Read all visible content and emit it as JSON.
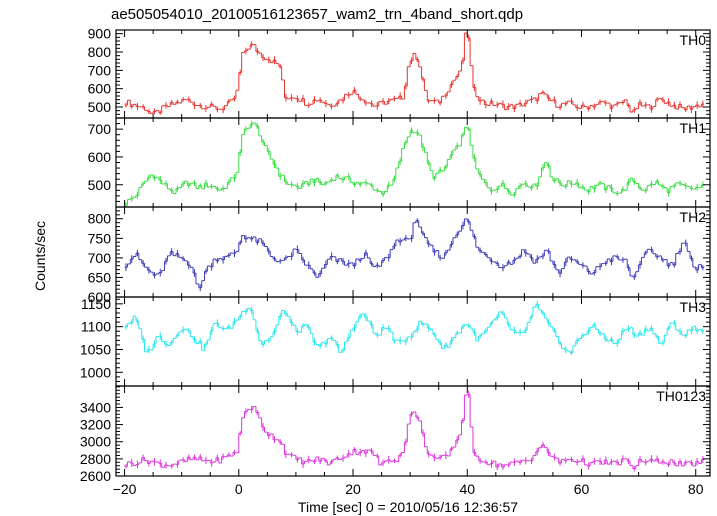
{
  "chart_data": {
    "type": "line",
    "title": "ae505054010_20100516123657_wam2_trn_4band_short.qdp",
    "xlabel": "Time [sec] 0 = 2010/05/16 12:36:57",
    "ylabel": "Counts/sec",
    "xlim": [
      -21.5,
      82.5
    ],
    "xticks": [
      -20,
      0,
      20,
      40,
      60,
      80
    ],
    "panels": [
      {
        "name": "TH0",
        "color": "#e8332f",
        "ylim": [
          440,
          920
        ],
        "yticks": [
          500,
          600,
          700,
          800,
          900
        ],
        "anchors": [
          [
            -20,
            530
          ],
          [
            -18,
            510
          ],
          [
            -16,
            490
          ],
          [
            -15,
            455
          ],
          [
            -13,
            495
          ],
          [
            -11,
            520
          ],
          [
            -9,
            540
          ],
          [
            -7,
            510
          ],
          [
            -5,
            500
          ],
          [
            -3,
            490
          ],
          [
            -1,
            530
          ],
          [
            0,
            600
          ],
          [
            0.5,
            770
          ],
          [
            1.5,
            820
          ],
          [
            2.5,
            840
          ],
          [
            3.5,
            800
          ],
          [
            4.5,
            775
          ],
          [
            5.5,
            760
          ],
          [
            6.5,
            740
          ],
          [
            7.5,
            720
          ],
          [
            8,
            550
          ],
          [
            10,
            560
          ],
          [
            12,
            520
          ],
          [
            14,
            545
          ],
          [
            16,
            510
          ],
          [
            18,
            540
          ],
          [
            19,
            570
          ],
          [
            20,
            590
          ],
          [
            22,
            540
          ],
          [
            24,
            505
          ],
          [
            26,
            530
          ],
          [
            28,
            540
          ],
          [
            29,
            560
          ],
          [
            29.5,
            700
          ],
          [
            30.5,
            780
          ],
          [
            31.5,
            770
          ],
          [
            32,
            690
          ],
          [
            33,
            540
          ],
          [
            35,
            520
          ],
          [
            37,
            610
          ],
          [
            38,
            660
          ],
          [
            39,
            690
          ],
          [
            39.8,
            900
          ],
          [
            40.4,
            880
          ],
          [
            41,
            600
          ],
          [
            43,
            520
          ],
          [
            45,
            515
          ],
          [
            47,
            500
          ],
          [
            49,
            505
          ],
          [
            50,
            520
          ],
          [
            52,
            540
          ],
          [
            53,
            575
          ],
          [
            54,
            550
          ],
          [
            56,
            510
          ],
          [
            58,
            520
          ],
          [
            60,
            495
          ],
          [
            62,
            510
          ],
          [
            64,
            525
          ],
          [
            66,
            500
          ],
          [
            68,
            540
          ],
          [
            69,
            455
          ],
          [
            70,
            510
          ],
          [
            72,
            500
          ],
          [
            74,
            545
          ],
          [
            76,
            510
          ],
          [
            78,
            490
          ],
          [
            80,
            505
          ],
          [
            81,
            515
          ]
        ]
      },
      {
        "name": "TH1",
        "color": "#35dd3e",
        "ylim": [
          420,
          740
        ],
        "yticks": [
          500,
          600,
          700
        ],
        "anchors": [
          [
            -20,
            430
          ],
          [
            -18,
            460
          ],
          [
            -16,
            520
          ],
          [
            -15,
            540
          ],
          [
            -13,
            500
          ],
          [
            -11,
            470
          ],
          [
            -9,
            510
          ],
          [
            -7,
            490
          ],
          [
            -5,
            500
          ],
          [
            -3,
            480
          ],
          [
            -1,
            520
          ],
          [
            0,
            560
          ],
          [
            0.5,
            660
          ],
          [
            1.5,
            710
          ],
          [
            2.5,
            720
          ],
          [
            3.5,
            700
          ],
          [
            4.5,
            640
          ],
          [
            5.5,
            600
          ],
          [
            6.5,
            570
          ],
          [
            7.5,
            530
          ],
          [
            9,
            500
          ],
          [
            11,
            490
          ],
          [
            13,
            520
          ],
          [
            15,
            500
          ],
          [
            17,
            530
          ],
          [
            19,
            520
          ],
          [
            21,
            505
          ],
          [
            23,
            500
          ],
          [
            25,
            470
          ],
          [
            27,
            500
          ],
          [
            28,
            570
          ],
          [
            29,
            640
          ],
          [
            30,
            690
          ],
          [
            31,
            700
          ],
          [
            32,
            660
          ],
          [
            33,
            590
          ],
          [
            34,
            530
          ],
          [
            36,
            550
          ],
          [
            37,
            600
          ],
          [
            38,
            620
          ],
          [
            39,
            660
          ],
          [
            40,
            710
          ],
          [
            40.5,
            700
          ],
          [
            41,
            600
          ],
          [
            42,
            540
          ],
          [
            44,
            480
          ],
          [
            46,
            500
          ],
          [
            48,
            470
          ],
          [
            50,
            510
          ],
          [
            52,
            490
          ],
          [
            53,
            550
          ],
          [
            54,
            590
          ],
          [
            55,
            520
          ],
          [
            57,
            500
          ],
          [
            59,
            510
          ],
          [
            61,
            480
          ],
          [
            63,
            500
          ],
          [
            65,
            485
          ],
          [
            67,
            470
          ],
          [
            69,
            520
          ],
          [
            71,
            480
          ],
          [
            73,
            510
          ],
          [
            75,
            480
          ],
          [
            77,
            500
          ],
          [
            79,
            485
          ],
          [
            81,
            490
          ]
        ]
      },
      {
        "name": "TH2",
        "color": "#3a3ab8",
        "ylim": [
          600,
          830
        ],
        "yticks": [
          600,
          650,
          700,
          750,
          800
        ],
        "anchors": [
          [
            -20,
            680
          ],
          [
            -18,
            710
          ],
          [
            -16,
            670
          ],
          [
            -14,
            650
          ],
          [
            -12,
            710
          ],
          [
            -10,
            700
          ],
          [
            -8,
            680
          ],
          [
            -7,
            610
          ],
          [
            -6,
            660
          ],
          [
            -4,
            700
          ],
          [
            -2,
            700
          ],
          [
            0,
            720
          ],
          [
            0.5,
            760
          ],
          [
            2,
            750
          ],
          [
            4,
            740
          ],
          [
            6,
            700
          ],
          [
            8,
            690
          ],
          [
            10,
            720
          ],
          [
            12,
            680
          ],
          [
            14,
            650
          ],
          [
            16,
            700
          ],
          [
            18,
            690
          ],
          [
            20,
            680
          ],
          [
            22,
            710
          ],
          [
            24,
            670
          ],
          [
            26,
            700
          ],
          [
            28,
            750
          ],
          [
            30,
            740
          ],
          [
            31,
            810
          ],
          [
            32,
            760
          ],
          [
            34,
            720
          ],
          [
            36,
            700
          ],
          [
            38,
            760
          ],
          [
            40,
            800
          ],
          [
            42,
            720
          ],
          [
            44,
            700
          ],
          [
            46,
            680
          ],
          [
            48,
            690
          ],
          [
            50,
            720
          ],
          [
            52,
            690
          ],
          [
            54,
            720
          ],
          [
            56,
            660
          ],
          [
            58,
            700
          ],
          [
            60,
            680
          ],
          [
            62,
            660
          ],
          [
            64,
            690
          ],
          [
            66,
            700
          ],
          [
            68,
            690
          ],
          [
            69,
            640
          ],
          [
            70,
            680
          ],
          [
            72,
            720
          ],
          [
            74,
            700
          ],
          [
            76,
            680
          ],
          [
            78,
            750
          ],
          [
            80,
            660
          ],
          [
            81,
            680
          ]
        ]
      },
      {
        "name": "TH3",
        "color": "#22e8ee",
        "ylim": [
          970,
          1165
        ],
        "yticks": [
          1000,
          1050,
          1100,
          1150
        ],
        "anchors": [
          [
            -20,
            1100
          ],
          [
            -18,
            1120
          ],
          [
            -16,
            1040
          ],
          [
            -14,
            1080
          ],
          [
            -12,
            1060
          ],
          [
            -10,
            1100
          ],
          [
            -8,
            1080
          ],
          [
            -6,
            1050
          ],
          [
            -4,
            1110
          ],
          [
            -2,
            1090
          ],
          [
            0,
            1120
          ],
          [
            2,
            1150
          ],
          [
            4,
            1060
          ],
          [
            6,
            1080
          ],
          [
            8,
            1140
          ],
          [
            10,
            1090
          ],
          [
            12,
            1100
          ],
          [
            14,
            1050
          ],
          [
            16,
            1080
          ],
          [
            18,
            1040
          ],
          [
            20,
            1100
          ],
          [
            22,
            1130
          ],
          [
            24,
            1080
          ],
          [
            26,
            1100
          ],
          [
            28,
            1060
          ],
          [
            30,
            1080
          ],
          [
            32,
            1110
          ],
          [
            34,
            1090
          ],
          [
            36,
            1050
          ],
          [
            38,
            1080
          ],
          [
            40,
            1110
          ],
          [
            42,
            1070
          ],
          [
            44,
            1100
          ],
          [
            46,
            1130
          ],
          [
            48,
            1090
          ],
          [
            50,
            1080
          ],
          [
            52,
            1150
          ],
          [
            54,
            1110
          ],
          [
            56,
            1070
          ],
          [
            58,
            1040
          ],
          [
            60,
            1080
          ],
          [
            62,
            1100
          ],
          [
            64,
            1080
          ],
          [
            66,
            1060
          ],
          [
            68,
            1100
          ],
          [
            70,
            1080
          ],
          [
            72,
            1100
          ],
          [
            74,
            1060
          ],
          [
            76,
            1110
          ],
          [
            78,
            1080
          ],
          [
            80,
            1100
          ],
          [
            81,
            1090
          ]
        ]
      },
      {
        "name": "TH0123",
        "color": "#dd33dd",
        "ylim": [
          2600,
          3650
        ],
        "yticks": [
          2600,
          2800,
          3000,
          3200,
          3400
        ],
        "anchors": [
          [
            -20,
            2730
          ],
          [
            -18,
            2760
          ],
          [
            -16,
            2790
          ],
          [
            -14,
            2740
          ],
          [
            -12,
            2730
          ],
          [
            -10,
            2760
          ],
          [
            -8,
            2800
          ],
          [
            -6,
            2780
          ],
          [
            -4,
            2770
          ],
          [
            -2,
            2820
          ],
          [
            0,
            2900
          ],
          [
            0.5,
            3250
          ],
          [
            1.5,
            3380
          ],
          [
            2.5,
            3410
          ],
          [
            3.5,
            3300
          ],
          [
            4.5,
            3150
          ],
          [
            5.5,
            3080
          ],
          [
            6.5,
            3050
          ],
          [
            7.5,
            3000
          ],
          [
            8.5,
            2850
          ],
          [
            10,
            2800
          ],
          [
            12,
            2760
          ],
          [
            14,
            2800
          ],
          [
            16,
            2750
          ],
          [
            18,
            2820
          ],
          [
            20,
            2880
          ],
          [
            22,
            2900
          ],
          [
            24,
            2850
          ],
          [
            25,
            2700
          ],
          [
            26,
            2800
          ],
          [
            28,
            2800
          ],
          [
            29,
            2900
          ],
          [
            29.5,
            3150
          ],
          [
            30.5,
            3350
          ],
          [
            31.5,
            3300
          ],
          [
            32.5,
            3000
          ],
          [
            33.5,
            2850
          ],
          [
            35,
            2780
          ],
          [
            37,
            2850
          ],
          [
            38,
            3000
          ],
          [
            39,
            3100
          ],
          [
            39.8,
            3600
          ],
          [
            40.4,
            3550
          ],
          [
            41,
            2850
          ],
          [
            43,
            2780
          ],
          [
            45,
            2740
          ],
          [
            47,
            2720
          ],
          [
            49,
            2760
          ],
          [
            51,
            2790
          ],
          [
            53,
            2950
          ],
          [
            54,
            2900
          ],
          [
            56,
            2760
          ],
          [
            58,
            2800
          ],
          [
            60,
            2770
          ],
          [
            62,
            2740
          ],
          [
            64,
            2760
          ],
          [
            66,
            2740
          ],
          [
            68,
            2800
          ],
          [
            69,
            2650
          ],
          [
            70,
            2780
          ],
          [
            72,
            2760
          ],
          [
            74,
            2780
          ],
          [
            76,
            2760
          ],
          [
            78,
            2720
          ],
          [
            80,
            2750
          ],
          [
            81,
            2760
          ]
        ]
      }
    ],
    "grid": false,
    "legend": "none"
  }
}
